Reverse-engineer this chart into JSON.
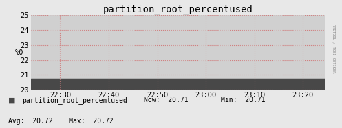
{
  "title": "partition_root_percentused",
  "ylabel": "%0",
  "ylim": [
    20,
    25
  ],
  "yticks": [
    20,
    21,
    22,
    23,
    24,
    25
  ],
  "xlim": [
    0,
    100
  ],
  "xtick_labels": [
    "22:30",
    "22:40",
    "22:50",
    "23:00",
    "23:10",
    "23:20"
  ],
  "xtick_positions": [
    10,
    26.5,
    43,
    59.5,
    76,
    92.5
  ],
  "data_value": 20.71,
  "fill_color": "#484848",
  "line_color": "#606060",
  "background_color": "#e8e8e8",
  "plot_bg_color": "#d0d0d0",
  "grid_color": "#d08080",
  "title_fontsize": 10,
  "axis_fontsize": 7.5,
  "legend_text": "partition_root_percentused",
  "now_val": "20.71",
  "min_val": "20.71",
  "avg_val": "20.72",
  "max_val": "20.72",
  "right_label": "RRDTOOL / TOBI OETIKER",
  "arrow_color": "#cc0000"
}
